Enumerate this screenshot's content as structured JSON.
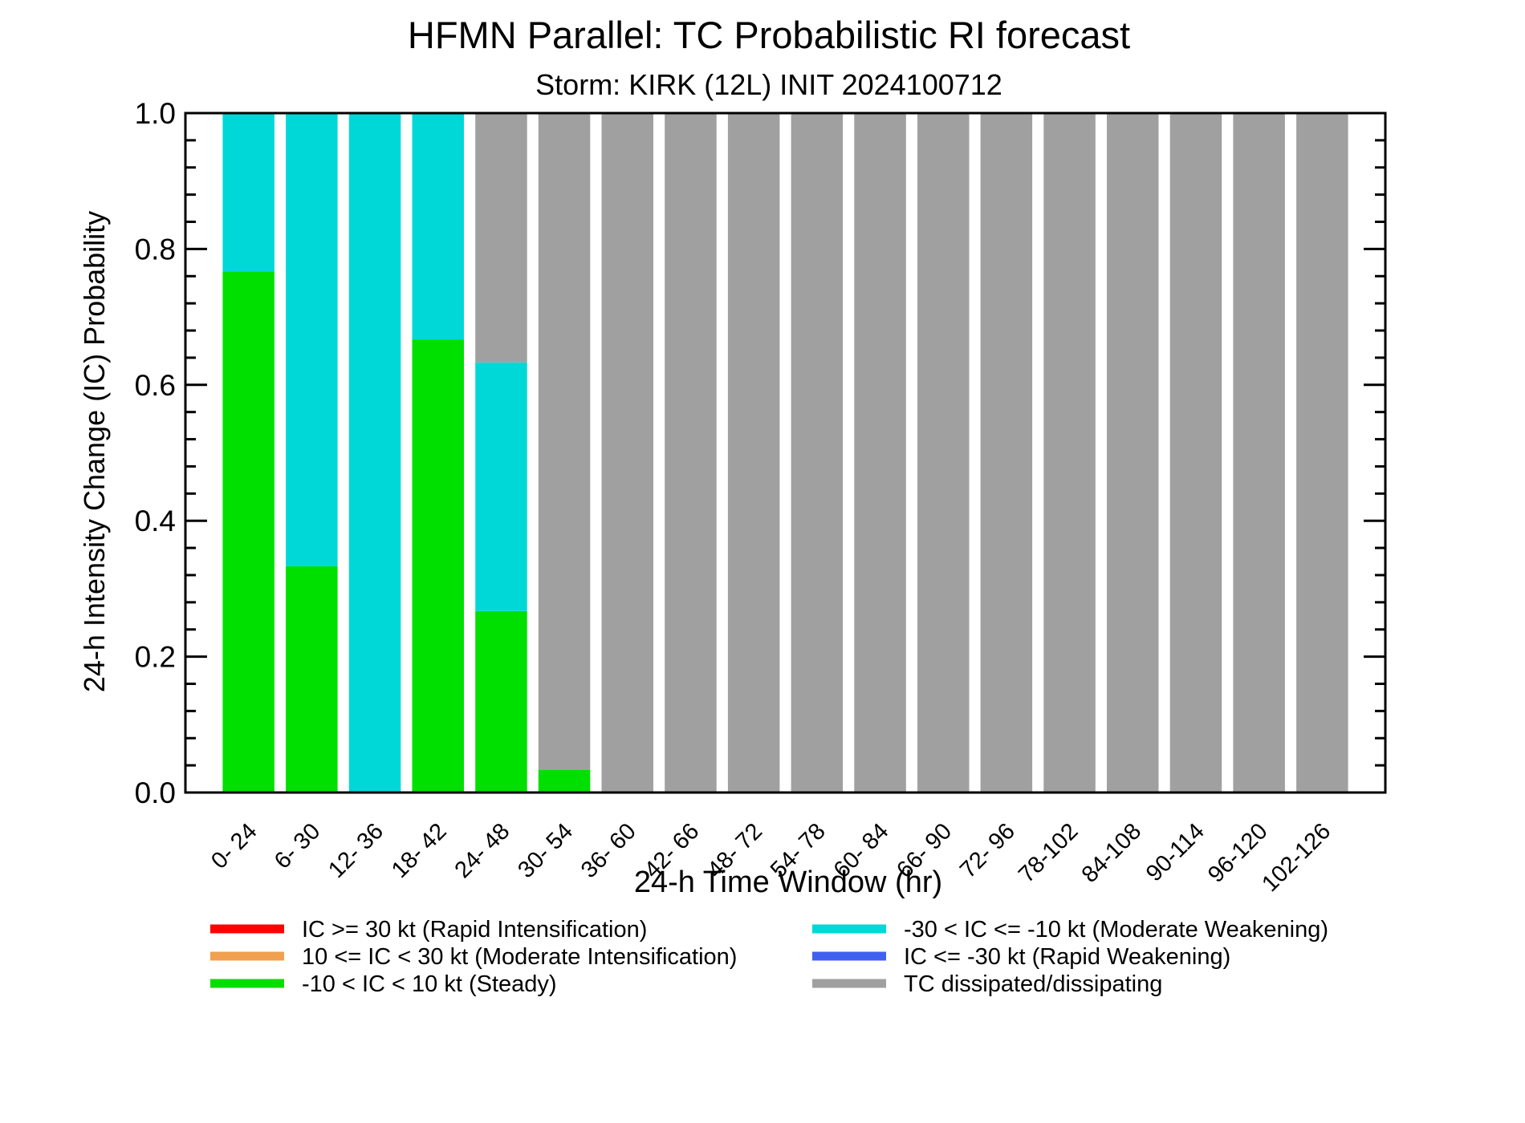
{
  "chart_data": {
    "type": "bar",
    "stacked": true,
    "title": "HFMN Parallel: TC Probabilistic RI forecast",
    "subtitle": "Storm: KIRK (12L) INIT 2024100712",
    "xlabel": "24-h Time Window (hr)",
    "ylabel": "24-h Intensity Change (IC) Probability",
    "ylim": [
      0,
      1.0
    ],
    "yticks": [
      "0.0",
      "0.2",
      "0.4",
      "0.6",
      "0.8",
      "1.0"
    ],
    "grid": false,
    "categories": [
      "0- 24",
      "6- 30",
      "12- 36",
      "18- 42",
      "24- 48",
      "30- 54",
      "36- 60",
      "42- 66",
      "48- 72",
      "54- 78",
      "60- 84",
      "66- 90",
      "72- 96",
      "78-102",
      "84-108",
      "90-114",
      "96-120",
      "102-126"
    ],
    "series": [
      {
        "name": "IC >= 30 kt (Rapid Intensification)",
        "color": "#ff0000",
        "values": [
          0,
          0,
          0,
          0,
          0,
          0,
          0,
          0,
          0,
          0,
          0,
          0,
          0,
          0,
          0,
          0,
          0,
          0
        ]
      },
      {
        "name": "10 <= IC < 30 kt (Moderate Intensification)",
        "color": "#f0a050",
        "values": [
          0,
          0,
          0,
          0,
          0,
          0,
          0,
          0,
          0,
          0,
          0,
          0,
          0,
          0,
          0,
          0,
          0,
          0
        ]
      },
      {
        "name": "-10 < IC < 10 kt (Steady)",
        "color": "#00e000",
        "values": [
          0.767,
          0.333,
          0,
          0.667,
          0.267,
          0.033,
          0,
          0,
          0,
          0,
          0,
          0,
          0,
          0,
          0,
          0,
          0,
          0
        ]
      },
      {
        "name": "-30 < IC <= -10 kt (Moderate Weakening)",
        "color": "#00d8d8",
        "values": [
          0.233,
          0.667,
          1.0,
          0.333,
          0.366,
          0,
          0,
          0,
          0,
          0,
          0,
          0,
          0,
          0,
          0,
          0,
          0,
          0
        ]
      },
      {
        "name": "IC <= -30 kt (Rapid Weakening)",
        "color": "#4060f0",
        "values": [
          0,
          0,
          0,
          0,
          0,
          0,
          0,
          0,
          0,
          0,
          0,
          0,
          0,
          0,
          0,
          0,
          0,
          0
        ]
      },
      {
        "name": "TC dissipated/dissipating",
        "color": "#a0a0a0",
        "values": [
          0,
          0,
          0,
          0,
          0.367,
          0.967,
          1,
          1,
          1,
          1,
          1,
          1,
          1,
          1,
          1,
          1,
          1,
          1
        ]
      }
    ],
    "legend": {
      "placement": "bottom",
      "columns": [
        [
          "IC >= 30 kt (Rapid Intensification)",
          "10 <= IC < 30 kt (Moderate Intensification)",
          "-10 < IC < 10 kt (Steady)"
        ],
        [
          "-30 < IC <= -10 kt (Moderate Weakening)",
          "IC <= -30 kt (Rapid Weakening)",
          "TC dissipated/dissipating"
        ]
      ]
    }
  }
}
